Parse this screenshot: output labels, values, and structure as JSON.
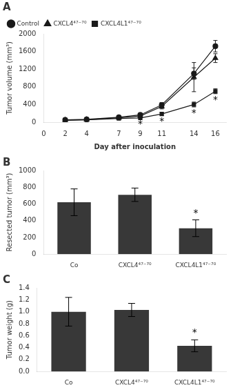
{
  "chart_data": [
    {
      "type": "line",
      "title": "A",
      "xlabel": "Day after inoculation",
      "ylabel": "Tumor volume (mm³)",
      "x": [
        2,
        4,
        7,
        9,
        11,
        14,
        16
      ],
      "series": [
        {
          "name": "Control",
          "color": "#1a1a1a",
          "marker": "circle",
          "line_style": "solid",
          "values": [
            55,
            65,
            110,
            165,
            390,
            1100,
            1720
          ],
          "errors": [
            10,
            12,
            18,
            25,
            55,
            130,
            130
          ]
        },
        {
          "name": "CXCL4⁴⁷⁻⁷⁰",
          "color": "#1a1a1a",
          "marker": "triangle",
          "line_style": "solid",
          "values": [
            48,
            58,
            100,
            140,
            355,
            1020,
            1450
          ],
          "errors": [
            10,
            12,
            18,
            28,
            55,
            330,
            100
          ]
        },
        {
          "name": "CXCL4L1⁴⁷⁻⁷⁰",
          "color": "#1a1a1a",
          "marker": "square",
          "line_style": "solid",
          "values": [
            42,
            52,
            85,
            95,
            185,
            400,
            700
          ],
          "errors": [
            8,
            10,
            14,
            18,
            35,
            55,
            55
          ]
        }
      ],
      "xlim": [
        0,
        17
      ],
      "xticks": [
        0,
        2,
        4,
        7,
        9,
        11,
        14,
        16
      ],
      "ylim": [
        0,
        2000
      ],
      "yticks": [
        0,
        400,
        800,
        1200,
        1600,
        2000
      ],
      "grid": false,
      "legend": "upper left",
      "annotations": [
        {
          "text": "*",
          "x": 9,
          "y": 55
        },
        {
          "text": "*",
          "x": 11,
          "y": 115
        },
        {
          "text": "*",
          "x": 14,
          "y": 310
        },
        {
          "text": "*",
          "x": 16,
          "y": 610
        }
      ]
    },
    {
      "type": "bar",
      "title": "B",
      "ylabel": "Resected tumor (mm³)",
      "categories": [
        "Co",
        "CXCL4⁴⁷⁻⁷⁰",
        "CXCL4L1⁴⁷⁻⁷⁰"
      ],
      "values": [
        620,
        710,
        310
      ],
      "errors": [
        160,
        80,
        100
      ],
      "color": "#383838",
      "ylim": [
        0,
        1000
      ],
      "yticks": [
        0,
        200,
        400,
        600,
        800,
        1000
      ],
      "grid": false,
      "annotations": [
        {
          "text": "*",
          "x": "CXCL4L1⁴⁷⁻⁷⁰",
          "y": 425
        }
      ]
    },
    {
      "type": "bar",
      "title": "C",
      "ylabel": "Tumor weight (g)",
      "categories": [
        "Co",
        "CXCL4⁴⁷⁻⁷⁰",
        "CXCL4L1⁴⁷⁻⁷⁰"
      ],
      "values": [
        1.0,
        1.03,
        0.43
      ],
      "errors": [
        0.24,
        0.11,
        0.1
      ],
      "color": "#383838",
      "ylim": [
        0,
        1.4
      ],
      "yticks": [
        {
          "value": 0.0,
          "label": "0.0"
        },
        0.2,
        0.4,
        0.6,
        0.8,
        {
          "value": 1.0,
          "label": "1.0"
        },
        1.2,
        1.4
      ],
      "grid": false,
      "annotations": [
        {
          "text": "*",
          "x": "CXCL4L1⁴⁷⁻⁷⁰",
          "y": 0.56
        }
      ]
    }
  ]
}
